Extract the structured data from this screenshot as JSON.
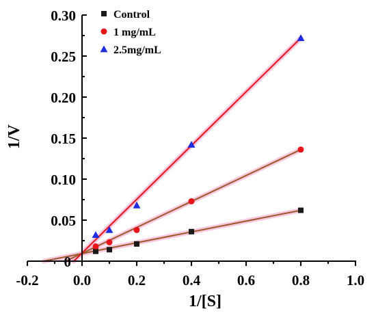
{
  "chart_data": {
    "type": "scatter",
    "xlabel": "1/[S]",
    "ylabel": "1/V",
    "xlim": [
      -0.2,
      1.0
    ],
    "ylim": [
      0,
      0.3
    ],
    "x_ticks": [
      "-0.2",
      "0.0",
      "0.2",
      "0.4",
      "0.6",
      "0.8",
      "1.0"
    ],
    "y_ticks": [
      "0",
      "0.05",
      "0.10",
      "0.15",
      "0.20",
      "0.25",
      "0.30"
    ],
    "legend_position": "top-left",
    "fit_line_color": "#b8860b",
    "series": [
      {
        "name": "Control",
        "marker": "square",
        "color": "#1a1a1a",
        "x": [
          0.05,
          0.1,
          0.2,
          0.4,
          0.8
        ],
        "y": [
          0.012,
          0.014,
          0.021,
          0.036,
          0.062
        ],
        "fit": {
          "from": [
            -0.14,
            0.0
          ],
          "to": [
            0.8,
            0.062
          ]
        }
      },
      {
        "name": "1 mg/mL",
        "marker": "circle",
        "color": "#e8141a",
        "x": [
          0.05,
          0.1,
          0.2,
          0.4,
          0.8
        ],
        "y": [
          0.018,
          0.023,
          0.038,
          0.073,
          0.136
        ],
        "fit": {
          "from": [
            -0.06,
            0.0
          ],
          "to": [
            0.8,
            0.136
          ]
        }
      },
      {
        "name": "2.5mg/mL",
        "marker": "triangle",
        "color": "#1f2de0",
        "x": [
          0.05,
          0.1,
          0.2,
          0.4,
          0.8
        ],
        "y": [
          0.032,
          0.038,
          0.068,
          0.142,
          0.272
        ],
        "fit": {
          "from": [
            -0.03,
            0.0
          ],
          "to": [
            0.8,
            0.272
          ]
        }
      }
    ]
  }
}
